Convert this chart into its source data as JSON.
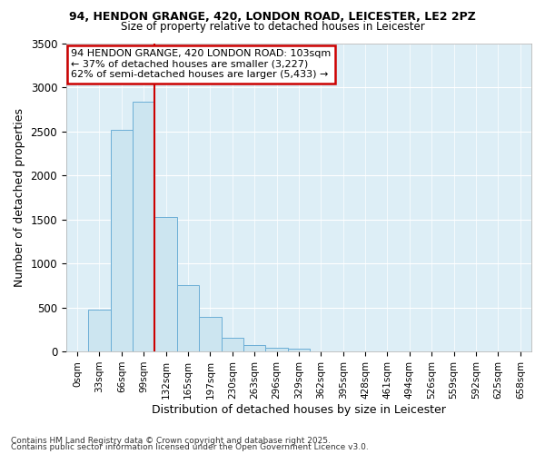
{
  "title_line1": "94, HENDON GRANGE, 420, LONDON ROAD, LEICESTER, LE2 2PZ",
  "title_line2": "Size of property relative to detached houses in Leicester",
  "xlabel": "Distribution of detached houses by size in Leicester",
  "ylabel": "Number of detached properties",
  "bar_labels": [
    "0sqm",
    "33sqm",
    "66sqm",
    "99sqm",
    "132sqm",
    "165sqm",
    "197sqm",
    "230sqm",
    "263sqm",
    "296sqm",
    "329sqm",
    "362sqm",
    "395sqm",
    "428sqm",
    "461sqm",
    "494sqm",
    "526sqm",
    "559sqm",
    "592sqm",
    "625sqm",
    "658sqm"
  ],
  "bar_values": [
    0,
    480,
    2520,
    2840,
    1530,
    750,
    390,
    155,
    70,
    45,
    30,
    0,
    0,
    0,
    0,
    0,
    0,
    0,
    0,
    0,
    0
  ],
  "bar_color": "#cce5f0",
  "bar_edgecolor": "#6baed6",
  "property_line_x": 3.5,
  "annotation_text": "94 HENDON GRANGE, 420 LONDON ROAD: 103sqm\n← 37% of detached houses are smaller (3,227)\n62% of semi-detached houses are larger (5,433) →",
  "annotation_border_color": "#cc0000",
  "vline_color": "#cc0000",
  "ylim": [
    0,
    3500
  ],
  "yticks": [
    0,
    500,
    1000,
    1500,
    2000,
    2500,
    3000,
    3500
  ],
  "footnote1": "Contains HM Land Registry data © Crown copyright and database right 2025.",
  "footnote2": "Contains public sector information licensed under the Open Government Licence v3.0.",
  "fig_bg_color": "#ffffff",
  "plot_bg_color": "#ddeef6"
}
